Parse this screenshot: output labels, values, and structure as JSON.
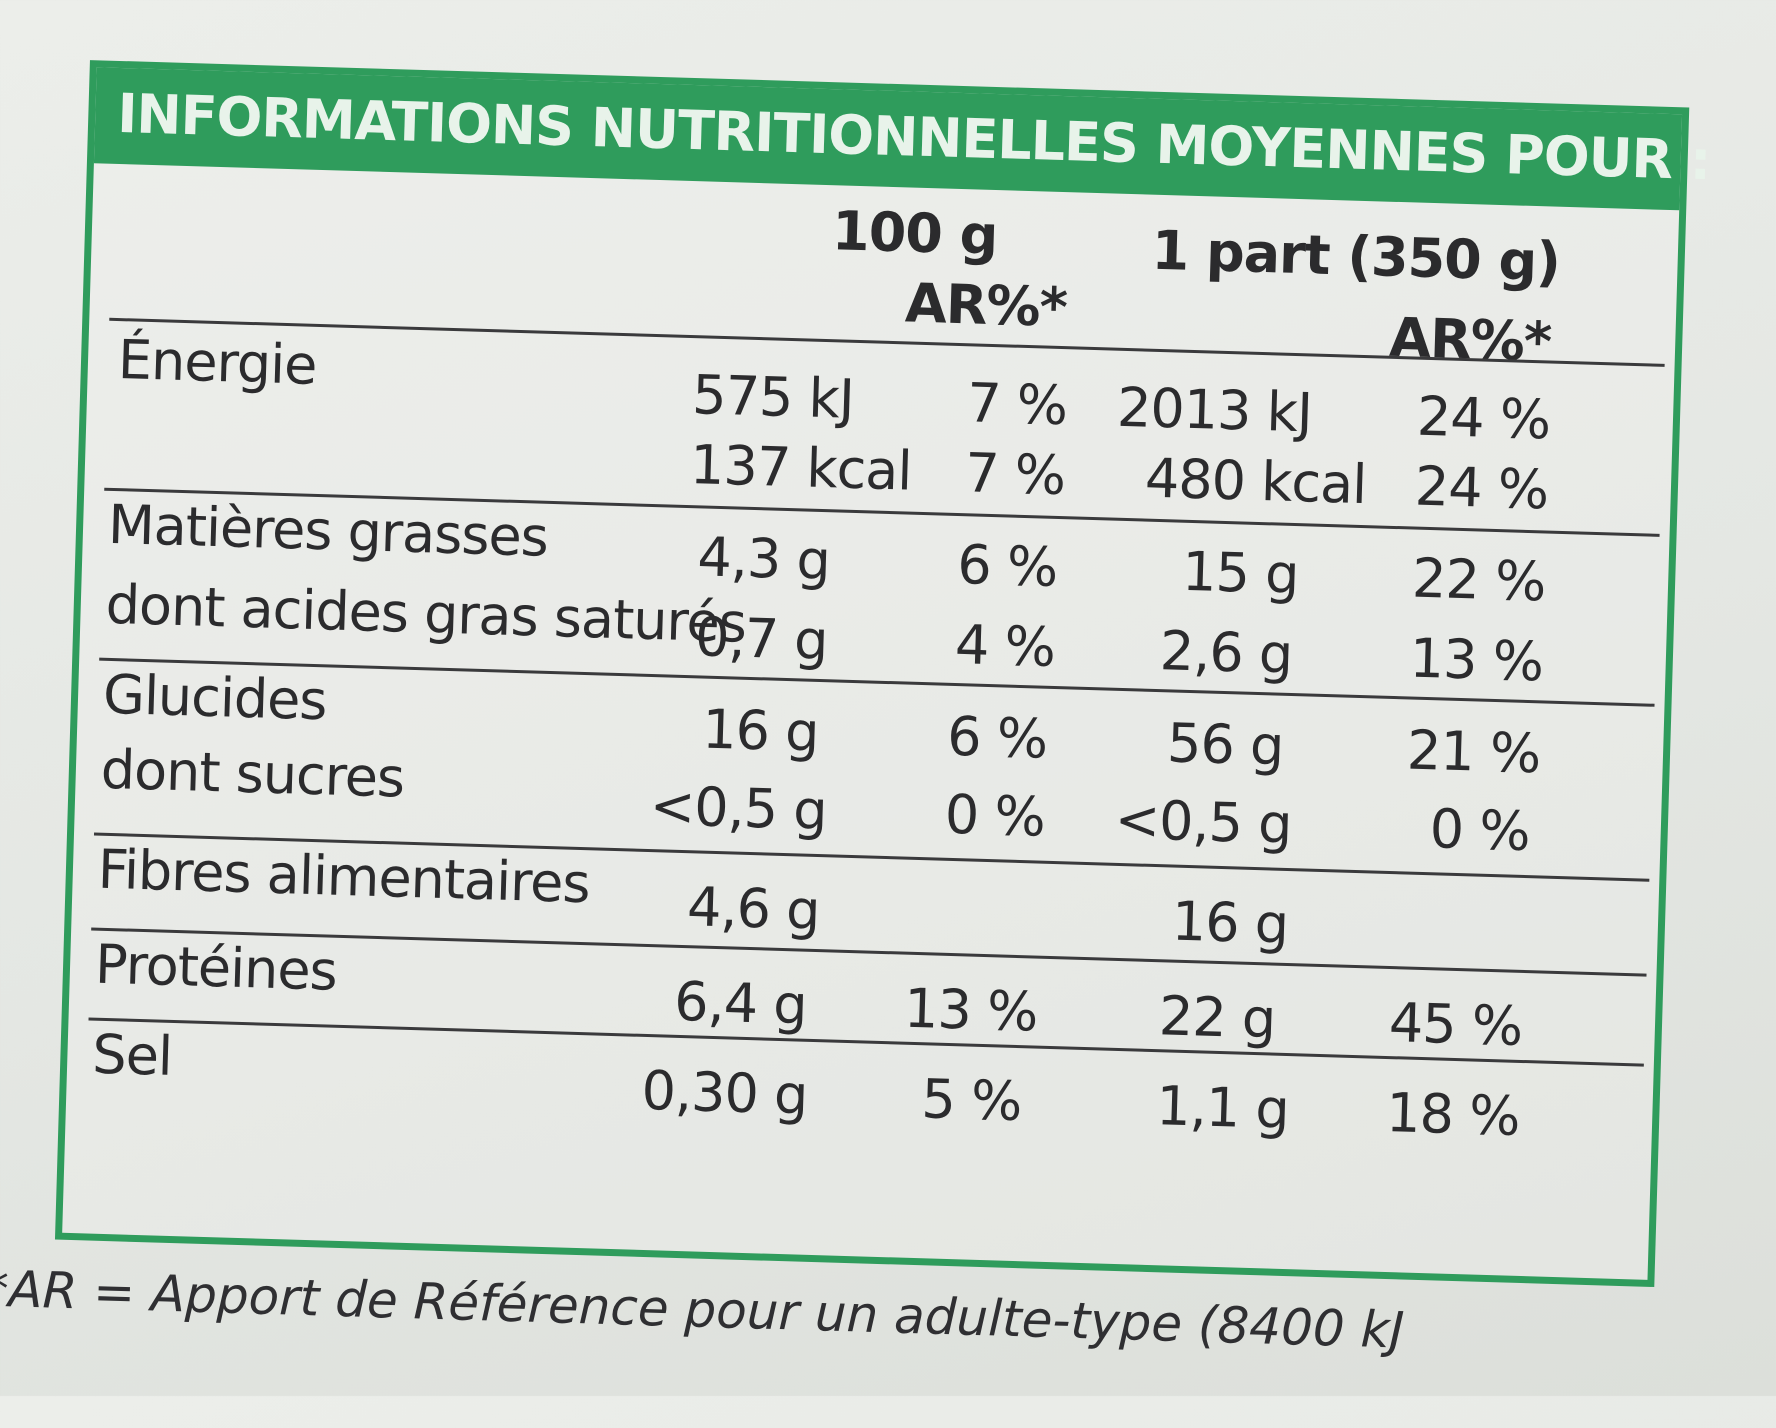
{
  "title": "INFORMATIONS NUTRITIONNELLES MOYENNES POUR :",
  "columns": {
    "per100": "100 g",
    "ar100": "AR%*",
    "perPortion": "1 part (350 g)",
    "arPortion": "AR%*"
  },
  "rows": {
    "energie": {
      "label": "Énergie",
      "kj100": "575 kJ",
      "kjAr100": "7 %",
      "kjPortion": "2013 kJ",
      "kjArPortion": "24 %",
      "kcal100": "137 kcal",
      "kcalAr100": "7 %",
      "kcalPortion": "480 kcal",
      "kcalArPortion": "24 %"
    },
    "matieres": {
      "label": "Matières grasses",
      "v100": "4,3 g",
      "ar100": "6 %",
      "vPortion": "15 g",
      "arPortion": "22 %"
    },
    "satures": {
      "label": "dont acides gras saturés",
      "v100": "0,7 g",
      "ar100": "4 %",
      "vPortion": "2,6 g",
      "arPortion": "13 %"
    },
    "glucides": {
      "label": "Glucides",
      "v100": "16 g",
      "ar100": "6 %",
      "vPortion": "56 g",
      "arPortion": "21 %"
    },
    "sucres": {
      "label": "dont sucres",
      "v100": "<0,5 g",
      "ar100": "0 %",
      "vPortion": "<0,5 g",
      "arPortion": "0 %"
    },
    "fibres": {
      "label": "Fibres alimentaires",
      "v100": "4,6 g",
      "vPortion": "16 g"
    },
    "proteines": {
      "label": "Protéines",
      "v100": "6,4 g",
      "ar100": "13 %",
      "vPortion": "22 g",
      "arPortion": "45 %"
    },
    "sel": {
      "label": "Sel",
      "v100": "0,30 g",
      "ar100": "5 %",
      "vPortion": "1,1 g",
      "arPortion": "18 %"
    }
  },
  "footnote": "*AR = Apport de Référence pour un adulte-type (8400 kJ"
}
